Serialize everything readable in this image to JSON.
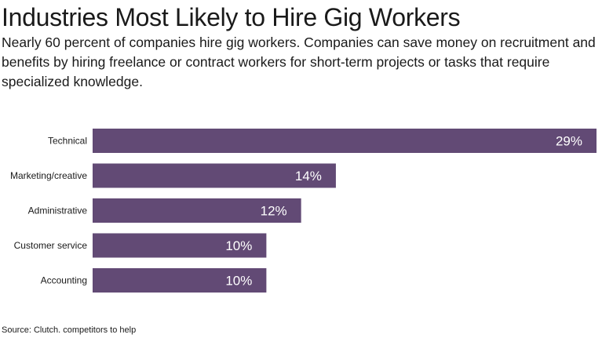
{
  "chart_data": {
    "type": "bar",
    "orientation": "horizontal",
    "title": "Industries Most Likely to Hire Gig Workers",
    "subtitle": "Nearly 60 percent of companies hire gig workers. Companies can save money on recruitment and benefits by hiring freelance or contract workers for short-term projects or tasks that require specialized knowledge.",
    "categories": [
      "Technical",
      "Marketing/creative",
      "Administrative",
      "Customer service",
      "Accounting"
    ],
    "values": [
      29,
      14,
      12,
      10,
      10
    ],
    "data_labels": [
      "29%",
      "14%",
      "12%",
      "10%",
      "10%"
    ],
    "unit": "%",
    "xlim": [
      0,
      29
    ],
    "grid": false,
    "legend": "none",
    "bar_color": "#624a75",
    "label_color": "#ffffff",
    "source": "Source: Clutch. competitors to help"
  }
}
